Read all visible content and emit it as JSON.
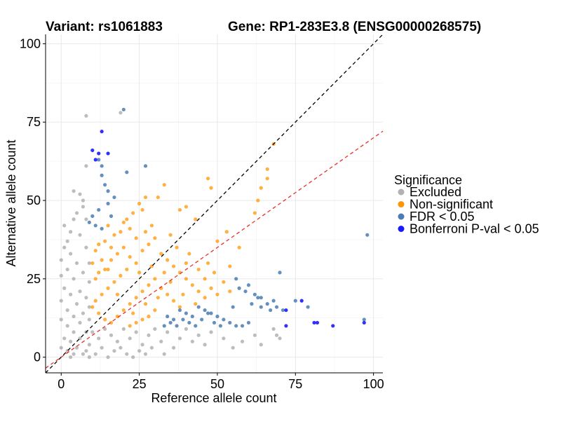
{
  "chart_data": {
    "type": "scatter",
    "title_left": "Variant: rs1061883",
    "title_right": "Gene: RP1-283E3.8 (ENSG00000268575)",
    "xlabel": "Reference allele count",
    "ylabel": "Alternative allele count",
    "xlim": [
      -5,
      103
    ],
    "ylim": [
      -5,
      103
    ],
    "x_ticks": [
      0,
      25,
      50,
      75,
      100
    ],
    "y_ticks": [
      0,
      25,
      50,
      75,
      100
    ],
    "grid": true,
    "legend": {
      "title": "Significance",
      "placement": "right",
      "entries": [
        {
          "key": "excluded",
          "label": "Excluded",
          "color": "#b2b2b2"
        },
        {
          "key": "nonsig",
          "label": "Non-significant",
          "color": "#ff9500"
        },
        {
          "key": "fdr",
          "label": "FDR < 0.05",
          "color": "#4a7db3"
        },
        {
          "key": "bonf",
          "label": "Bonferroni P-val < 0.05",
          "color": "#1a1aff"
        }
      ]
    },
    "reference_lines": [
      {
        "name": "identity",
        "slope": 1.0,
        "intercept": 0,
        "color": "#000000",
        "dash": "dashed"
      },
      {
        "name": "ratio-fit",
        "slope": 0.7,
        "intercept": 0,
        "color": "#e8302a",
        "dash": "dashed"
      }
    ],
    "series": [
      {
        "name": "Excluded",
        "color": "#b2b2b2",
        "points": [
          [
            19,
            78
          ],
          [
            8,
            77
          ],
          [
            8,
            61
          ],
          [
            4,
            53
          ],
          [
            6,
            52
          ],
          [
            7,
            50
          ],
          [
            7,
            48
          ],
          [
            5,
            46
          ],
          [
            4,
            44
          ],
          [
            8,
            44
          ],
          [
            1,
            42
          ],
          [
            3,
            40
          ],
          [
            6,
            39
          ],
          [
            2,
            37
          ],
          [
            1,
            35
          ],
          [
            8,
            35
          ],
          [
            3,
            33
          ],
          [
            0,
            31
          ],
          [
            5,
            30
          ],
          [
            9,
            30
          ],
          [
            2,
            28
          ],
          [
            7,
            27
          ],
          [
            0,
            26
          ],
          [
            4,
            25
          ],
          [
            9,
            24
          ],
          [
            1,
            22
          ],
          [
            6,
            21
          ],
          [
            3,
            20
          ],
          [
            8,
            19
          ],
          [
            0,
            18
          ],
          [
            5,
            17
          ],
          [
            9,
            16
          ],
          [
            2,
            15
          ],
          [
            7,
            14
          ],
          [
            4,
            13
          ],
          [
            0,
            12
          ],
          [
            9,
            12
          ],
          [
            6,
            11
          ],
          [
            2,
            10
          ],
          [
            4,
            8
          ],
          [
            8,
            8
          ],
          [
            1,
            6
          ],
          [
            6,
            6
          ],
          [
            3,
            5
          ],
          [
            9,
            4
          ],
          [
            0,
            3
          ],
          [
            5,
            3
          ],
          [
            2,
            2
          ],
          [
            8,
            2
          ],
          [
            4,
            1
          ],
          [
            7,
            1
          ],
          [
            3,
            0
          ],
          [
            9,
            0
          ],
          [
            10,
            8
          ],
          [
            12,
            6
          ],
          [
            14,
            9
          ],
          [
            16,
            7
          ],
          [
            18,
            5
          ],
          [
            20,
            9
          ],
          [
            22,
            6
          ],
          [
            24,
            8
          ],
          [
            26,
            4
          ],
          [
            28,
            7
          ],
          [
            30,
            9
          ],
          [
            32,
            5
          ],
          [
            34,
            8
          ],
          [
            36,
            3
          ],
          [
            38,
            6
          ],
          [
            40,
            9
          ],
          [
            42,
            5
          ],
          [
            44,
            7
          ],
          [
            46,
            4
          ],
          [
            48,
            8
          ],
          [
            52,
            6
          ],
          [
            55,
            3
          ],
          [
            58,
            5
          ],
          [
            62,
            7
          ],
          [
            64,
            4
          ],
          [
            68,
            9
          ],
          [
            69,
            7
          ],
          [
            70,
            6
          ],
          [
            13,
            3
          ],
          [
            17,
            2
          ],
          [
            21,
            1
          ],
          [
            25,
            2
          ],
          [
            29,
            3
          ],
          [
            33,
            1
          ],
          [
            11,
            1
          ],
          [
            15,
            0
          ],
          [
            19,
            3
          ],
          [
            23,
            0
          ],
          [
            27,
            1
          ]
        ]
      },
      {
        "name": "Non-significant",
        "color": "#ff9500",
        "points": [
          [
            68,
            68
          ],
          [
            66,
            60
          ],
          [
            64,
            54
          ],
          [
            66,
            57
          ],
          [
            47,
            57
          ],
          [
            48,
            54
          ],
          [
            63,
            50
          ],
          [
            62,
            46
          ],
          [
            53,
            40
          ],
          [
            50,
            37
          ],
          [
            57,
            35
          ],
          [
            43,
            44
          ],
          [
            40,
            48
          ],
          [
            38,
            47
          ],
          [
            33,
            55
          ],
          [
            31,
            51
          ],
          [
            27,
            51
          ],
          [
            25,
            49
          ],
          [
            26,
            47
          ],
          [
            21,
            44
          ],
          [
            23,
            46
          ],
          [
            20,
            43
          ],
          [
            22,
            41
          ],
          [
            19,
            40
          ],
          [
            17,
            39
          ],
          [
            15,
            42
          ],
          [
            14,
            37
          ],
          [
            12,
            36
          ],
          [
            11,
            34
          ],
          [
            10,
            30
          ],
          [
            12,
            27
          ],
          [
            14,
            28
          ],
          [
            16,
            31
          ],
          [
            18,
            33
          ],
          [
            20,
            35
          ],
          [
            22,
            32
          ],
          [
            24,
            30
          ],
          [
            26,
            34
          ],
          [
            28,
            36
          ],
          [
            30,
            38
          ],
          [
            32,
            33
          ],
          [
            34,
            31
          ],
          [
            36,
            29
          ],
          [
            38,
            27
          ],
          [
            40,
            25
          ],
          [
            42,
            23
          ],
          [
            44,
            21
          ],
          [
            46,
            19
          ],
          [
            48,
            22
          ],
          [
            50,
            20
          ],
          [
            52,
            24
          ],
          [
            54,
            21
          ],
          [
            37,
            35
          ],
          [
            35,
            39
          ],
          [
            29,
            42
          ],
          [
            27,
            40
          ],
          [
            24,
            38
          ],
          [
            19,
            26
          ],
          [
            17,
            24
          ],
          [
            15,
            22
          ],
          [
            13,
            20
          ],
          [
            11,
            18
          ],
          [
            10,
            16
          ],
          [
            12,
            14
          ],
          [
            14,
            12
          ],
          [
            16,
            11
          ],
          [
            18,
            13
          ],
          [
            20,
            15
          ],
          [
            22,
            17
          ],
          [
            24,
            19
          ],
          [
            26,
            21
          ],
          [
            28,
            23
          ],
          [
            30,
            25
          ],
          [
            32,
            22
          ],
          [
            34,
            20
          ],
          [
            36,
            18
          ],
          [
            38,
            16
          ],
          [
            30,
            15
          ],
          [
            28,
            13
          ],
          [
            26,
            12
          ],
          [
            24,
            11
          ],
          [
            22,
            10
          ],
          [
            18,
            20
          ],
          [
            21,
            28
          ],
          [
            25,
            27
          ],
          [
            29,
            29
          ],
          [
            33,
            27
          ],
          [
            40,
            30
          ],
          [
            44,
            28
          ],
          [
            46,
            25
          ],
          [
            35,
            24
          ],
          [
            31,
            19
          ],
          [
            27,
            17
          ],
          [
            23,
            14
          ],
          [
            13,
            31
          ],
          [
            16,
            35
          ],
          [
            11,
            25
          ],
          [
            15,
            28
          ],
          [
            39,
            20
          ],
          [
            43,
            17
          ],
          [
            41,
            33
          ],
          [
            47,
            30
          ],
          [
            49,
            27
          ],
          [
            54,
            29
          ]
        ]
      },
      {
        "name": "FDR < 0.05",
        "color": "#4a7db3",
        "points": [
          [
            20,
            79
          ],
          [
            12,
            63
          ],
          [
            13,
            61
          ],
          [
            21,
            59
          ],
          [
            27,
            61
          ],
          [
            13,
            58
          ],
          [
            14,
            55
          ],
          [
            15,
            53
          ],
          [
            17,
            51
          ],
          [
            15,
            49
          ],
          [
            12,
            47
          ],
          [
            10,
            45
          ],
          [
            11,
            42
          ],
          [
            13,
            41
          ],
          [
            9,
            43
          ],
          [
            16,
            45
          ],
          [
            70,
            27
          ],
          [
            56,
            25
          ],
          [
            57,
            22
          ],
          [
            59,
            21
          ],
          [
            60,
            23
          ],
          [
            62,
            20
          ],
          [
            64,
            19
          ],
          [
            66,
            17
          ],
          [
            68,
            18
          ],
          [
            69,
            16
          ],
          [
            71,
            15
          ],
          [
            44,
            16
          ],
          [
            46,
            15
          ],
          [
            48,
            14
          ],
          [
            50,
            13
          ],
          [
            52,
            12
          ],
          [
            54,
            11
          ],
          [
            56,
            10
          ],
          [
            58,
            10
          ],
          [
            60,
            11
          ],
          [
            47,
            14
          ],
          [
            49,
            11
          ],
          [
            51,
            10
          ],
          [
            45,
            12
          ],
          [
            43,
            10
          ],
          [
            41,
            11
          ],
          [
            39,
            12
          ],
          [
            37,
            10
          ],
          [
            35,
            11
          ],
          [
            33,
            10
          ],
          [
            34,
            13
          ],
          [
            36,
            12
          ],
          [
            38,
            15
          ],
          [
            40,
            14
          ],
          [
            42,
            13
          ],
          [
            64,
            16
          ],
          [
            63,
            19
          ],
          [
            67,
            15
          ],
          [
            61,
            17
          ],
          [
            75,
            18
          ],
          [
            79,
            16
          ],
          [
            98,
            39
          ],
          [
            97,
            12
          ],
          [
            55,
            16
          ]
        ]
      },
      {
        "name": "Bonferroni P-val < 0.05",
        "color": "#1a1aff",
        "points": [
          [
            13,
            72
          ],
          [
            10,
            66
          ],
          [
            12,
            65
          ],
          [
            11,
            63
          ],
          [
            15,
            65
          ],
          [
            72,
            15
          ],
          [
            77,
            18
          ],
          [
            72,
            10
          ],
          [
            81,
            11
          ],
          [
            82,
            11
          ],
          [
            87,
            10
          ],
          [
            97,
            11
          ]
        ]
      }
    ]
  }
}
